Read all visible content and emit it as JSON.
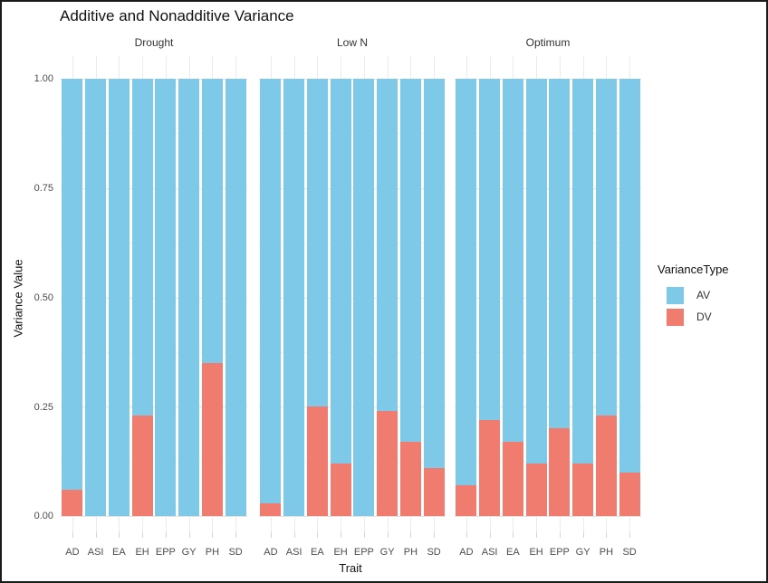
{
  "title": "Additive and Nonadditive Variance",
  "colors": {
    "av": "#7fc9e8",
    "dv": "#f07c6f",
    "grid_major": "#e4e4e4",
    "grid_minor": "#f1f1f1",
    "axis_text": "#4d4d4d"
  },
  "axes": {
    "y_title": "Variance Value",
    "x_title": "Trait",
    "y_ticks": [
      "1.00",
      "0.75",
      "0.50",
      "0.25",
      "0.00"
    ]
  },
  "legend": {
    "title": "VarianceType",
    "items": [
      {
        "label": "AV",
        "color_key": "av"
      },
      {
        "label": "DV",
        "color_key": "dv"
      }
    ]
  },
  "chart_data": {
    "type": "bar",
    "stacked": true,
    "title": "Additive and Nonadditive Variance",
    "xlabel": "Trait",
    "ylabel": "Variance Value",
    "ylim": [
      0,
      1
    ],
    "y_major_ticks": [
      0,
      0.25,
      0.5,
      0.75,
      1.0
    ],
    "y_minor_ticks": [
      0.125,
      0.375,
      0.625,
      0.875
    ],
    "grid": true,
    "legend_position": "right",
    "categories": [
      "AD",
      "ASI",
      "EA",
      "EH",
      "EPP",
      "GY",
      "PH",
      "SD"
    ],
    "facets": [
      {
        "label": "Drought",
        "series": [
          {
            "name": "AV",
            "values": [
              0.94,
              1.0,
              1.0,
              0.77,
              1.0,
              1.0,
              0.65,
              1.0
            ]
          },
          {
            "name": "DV",
            "values": [
              0.06,
              0.0,
              0.0,
              0.23,
              0.0,
              0.0,
              0.35,
              0.0
            ]
          }
        ]
      },
      {
        "label": "Low N",
        "series": [
          {
            "name": "AV",
            "values": [
              0.97,
              1.0,
              0.75,
              0.88,
              1.0,
              0.76,
              0.83,
              0.89
            ]
          },
          {
            "name": "DV",
            "values": [
              0.03,
              0.0,
              0.25,
              0.12,
              0.0,
              0.24,
              0.17,
              0.11
            ]
          }
        ]
      },
      {
        "label": "Optimum",
        "series": [
          {
            "name": "AV",
            "values": [
              0.93,
              0.78,
              0.83,
              0.88,
              0.8,
              0.88,
              0.77,
              0.9
            ]
          },
          {
            "name": "DV",
            "values": [
              0.07,
              0.22,
              0.17,
              0.12,
              0.2,
              0.12,
              0.23,
              0.1
            ]
          }
        ]
      }
    ]
  }
}
